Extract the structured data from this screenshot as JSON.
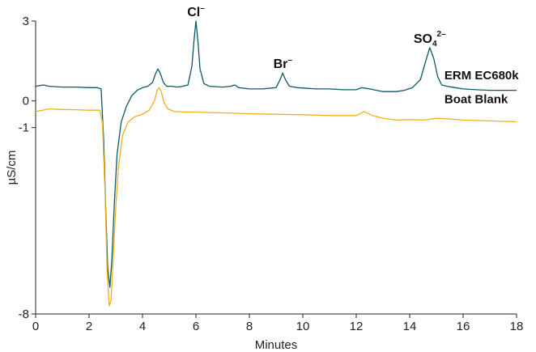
{
  "chart_data": {
    "type": "line",
    "title": "",
    "xlabel": "Minutes",
    "ylabel": "µS/cm",
    "xlim": [
      0,
      18
    ],
    "ylim": [
      -8,
      3
    ],
    "x_ticks": [
      0,
      2,
      4,
      6,
      8,
      10,
      12,
      14,
      16,
      18
    ],
    "y_ticks": [
      3,
      0,
      -1,
      -8
    ],
    "x_tick_labels": [
      "0",
      "2",
      "4",
      "6",
      "8",
      "10",
      "12",
      "14",
      "16",
      "18"
    ],
    "y_tick_labels": [
      "3",
      "0",
      "-1",
      "-8"
    ],
    "grid": false,
    "legend": "none",
    "series": [
      {
        "name": "ERM EC680k",
        "color": "#0b5a63",
        "x": [
          0.0,
          0.3,
          0.5,
          1.0,
          1.5,
          2.0,
          2.3,
          2.45,
          2.55,
          2.62,
          2.7,
          2.78,
          2.85,
          2.95,
          3.05,
          3.2,
          3.4,
          3.6,
          3.8,
          4.0,
          4.2,
          4.38,
          4.48,
          4.58,
          4.68,
          4.78,
          4.9,
          5.1,
          5.3,
          5.5,
          5.7,
          5.85,
          5.92,
          6.0,
          6.08,
          6.15,
          6.3,
          6.5,
          7.0,
          7.3,
          7.45,
          7.6,
          8.0,
          8.5,
          9.0,
          9.15,
          9.25,
          9.35,
          9.5,
          9.8,
          10.5,
          11.0,
          11.5,
          12.0,
          12.2,
          12.5,
          13.0,
          13.5,
          13.8,
          14.1,
          14.4,
          14.6,
          14.75,
          14.9,
          15.05,
          15.2,
          15.4,
          15.7,
          16.0,
          16.5,
          17.0,
          17.5,
          18.0
        ],
        "y": [
          0.55,
          0.6,
          0.55,
          0.52,
          0.52,
          0.5,
          0.5,
          0.45,
          -1.5,
          -4.0,
          -6.3,
          -7.0,
          -6.0,
          -3.8,
          -2.0,
          -0.8,
          -0.2,
          0.2,
          0.4,
          0.5,
          0.55,
          0.7,
          1.0,
          1.2,
          1.0,
          0.7,
          0.55,
          0.55,
          0.52,
          0.55,
          0.6,
          1.3,
          2.2,
          3.0,
          2.2,
          1.2,
          0.65,
          0.55,
          0.52,
          0.55,
          0.6,
          0.5,
          0.45,
          0.45,
          0.5,
          0.8,
          1.05,
          0.8,
          0.55,
          0.5,
          0.45,
          0.45,
          0.42,
          0.42,
          0.5,
          0.45,
          0.35,
          0.35,
          0.4,
          0.5,
          0.8,
          1.5,
          2.0,
          1.6,
          0.9,
          0.6,
          0.55,
          0.5,
          0.45,
          0.42,
          0.4,
          0.4,
          0.4
        ]
      },
      {
        "name": "Boat Blank",
        "color": "#f2ae1c",
        "x": [
          0.0,
          0.5,
          1.0,
          1.5,
          2.0,
          2.4,
          2.5,
          2.6,
          2.68,
          2.76,
          2.82,
          2.9,
          3.0,
          3.1,
          3.25,
          3.45,
          3.7,
          4.0,
          4.25,
          4.45,
          4.55,
          4.62,
          4.7,
          4.8,
          4.95,
          5.2,
          5.6,
          6.0,
          7.0,
          8.0,
          9.0,
          10.0,
          11.0,
          12.0,
          12.3,
          12.6,
          13.0,
          13.5,
          14.0,
          14.5,
          15.0,
          15.5,
          16.0,
          17.0,
          18.0
        ],
        "y": [
          -0.4,
          -0.3,
          -0.32,
          -0.33,
          -0.35,
          -0.35,
          -0.8,
          -3.5,
          -6.5,
          -7.7,
          -7.5,
          -6.0,
          -4.0,
          -2.5,
          -1.3,
          -0.8,
          -0.6,
          -0.5,
          -0.35,
          0.0,
          0.4,
          0.5,
          0.35,
          -0.05,
          -0.3,
          -0.4,
          -0.42,
          -0.42,
          -0.45,
          -0.48,
          -0.5,
          -0.52,
          -0.55,
          -0.55,
          -0.4,
          -0.55,
          -0.65,
          -0.72,
          -0.7,
          -0.72,
          -0.65,
          -0.68,
          -0.72,
          -0.75,
          -0.78
        ]
      }
    ],
    "annotations": [
      {
        "text": "Cl",
        "sup": "–",
        "sub": "",
        "x": 6.0,
        "y": 3.0
      },
      {
        "text": "Br",
        "sup": "–",
        "sub": "",
        "x": 9.25,
        "y": 1.05
      },
      {
        "text": "SO",
        "sub": "4",
        "sup": "2–",
        "x": 14.75,
        "y": 2.0
      },
      {
        "text": "ERM EC680k",
        "sup": "",
        "sub": "",
        "x": 15.3,
        "y": 0.75
      },
      {
        "text": "Boat Blank",
        "sup": "",
        "sub": "",
        "x": 15.3,
        "y": -0.15
      }
    ]
  }
}
